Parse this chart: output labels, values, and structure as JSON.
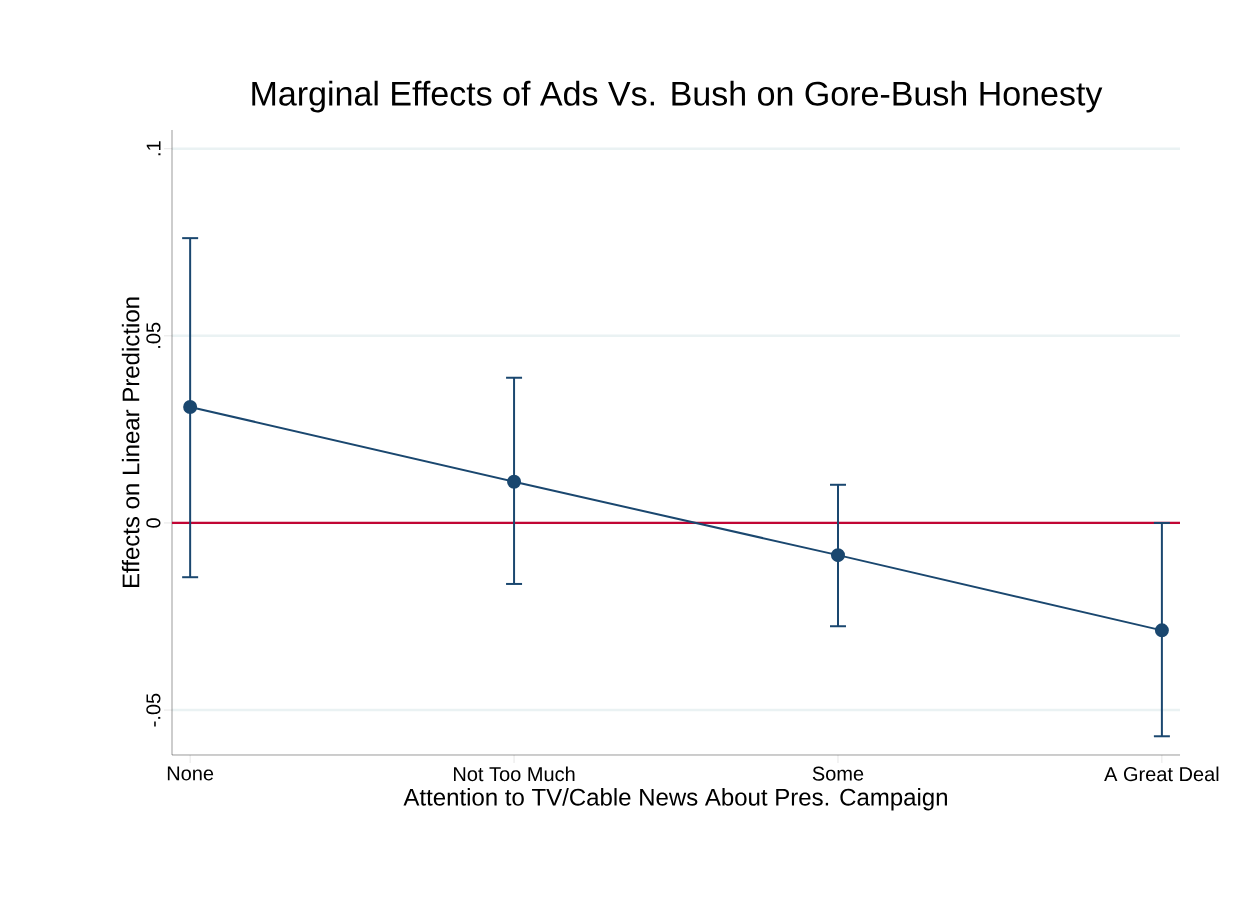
{
  "chart_data": {
    "type": "line",
    "title": "Marginal Effects of Ads Vs. Bush on Gore-Bush Honesty",
    "xlabel": "Attention to TV/Cable News About Pres. Campaign",
    "ylabel": "Effects on Linear Prediction",
    "categories": [
      "None",
      "Not Too Much",
      "Some",
      "A Great Deal"
    ],
    "series": [
      {
        "color": "#1a476f",
        "values": [
          0.031,
          0.011,
          -0.0086,
          -0.0287
        ],
        "errors": [
          [
            -0.0145,
            0.0761
          ],
          [
            -0.0163,
            0.0388
          ],
          [
            -0.0276,
            0.0102
          ],
          [
            -0.057,
            0.0
          ]
        ]
      }
    ],
    "ylim": [
      -0.062,
      0.105
    ],
    "yticks": [
      {
        "value": -0.05,
        "label": "-.05"
      },
      0,
      {
        "value": 0.05,
        "label": ".05"
      },
      {
        "value": 0.1,
        "label": ".1"
      }
    ],
    "ref_lines": [
      {
        "axis": "y",
        "value": 0,
        "color": "#c10534"
      }
    ],
    "grid": "y",
    "marker": "circle",
    "line_style": "solid"
  }
}
